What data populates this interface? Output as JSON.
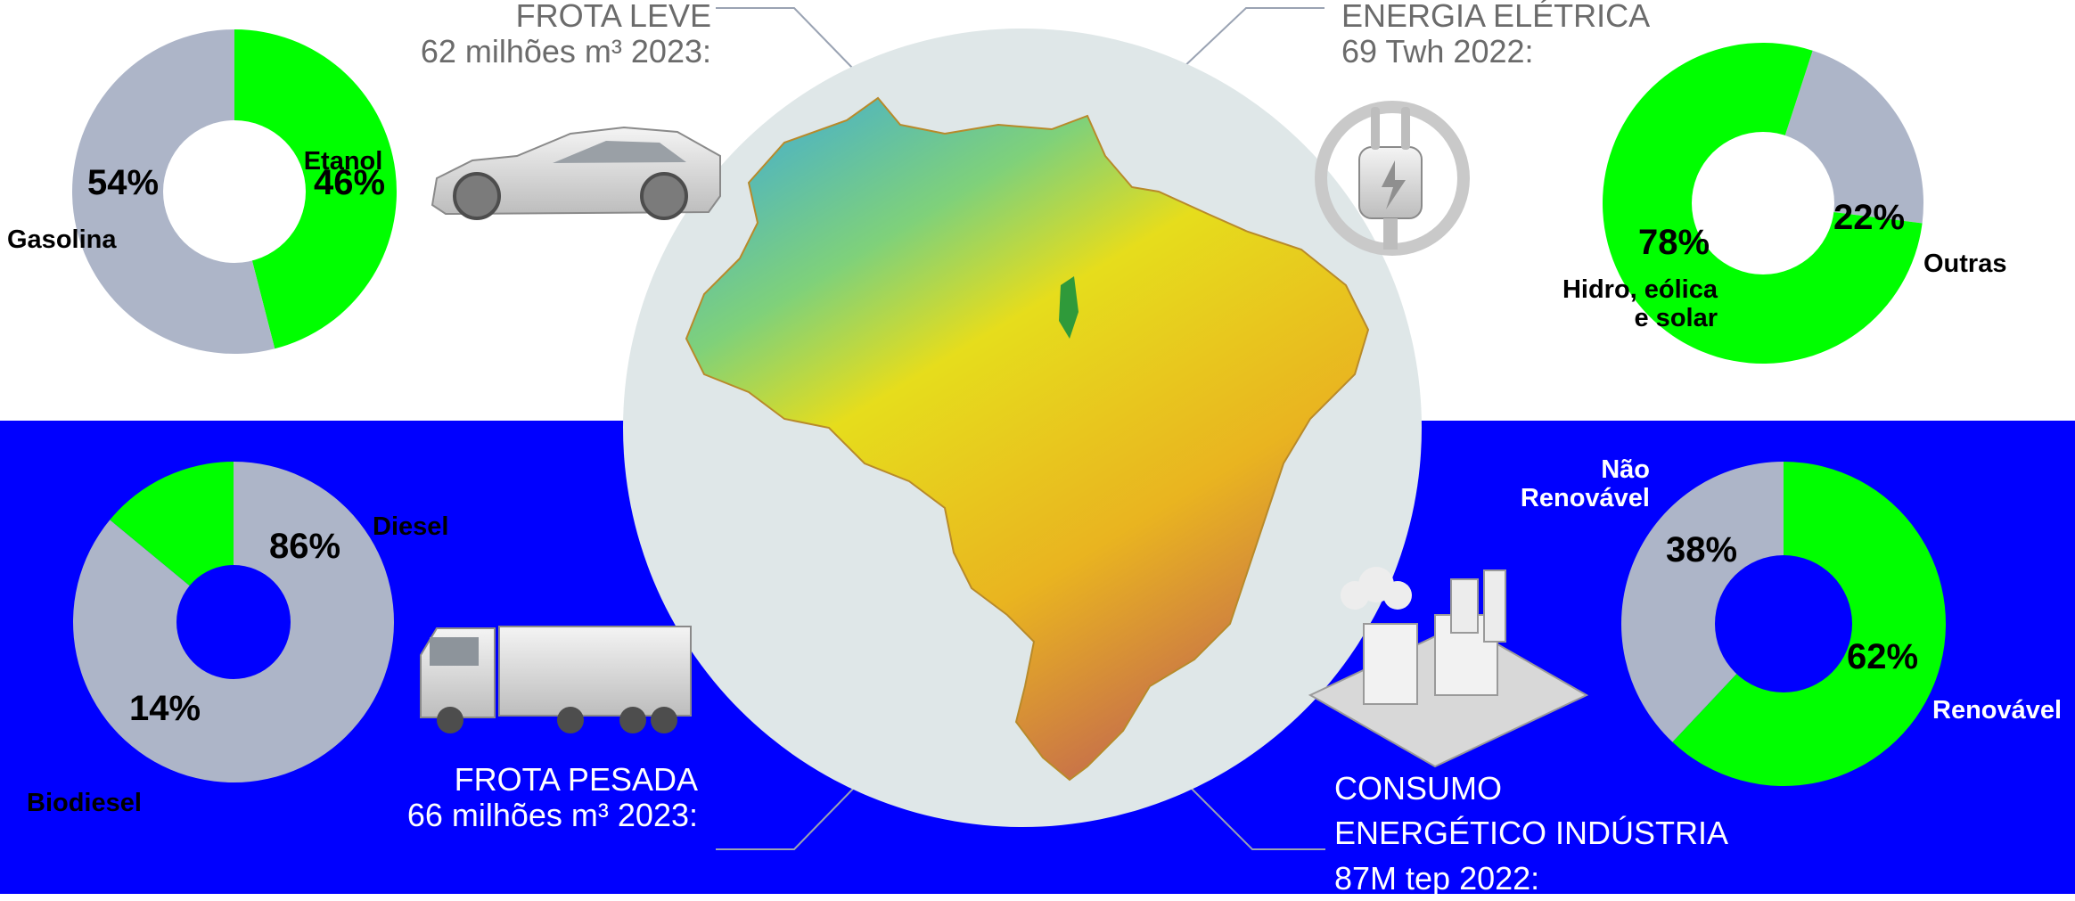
{
  "colors": {
    "renewable": "#00ff00",
    "fossil": "#adb5c8",
    "band": "#0000ff",
    "text_gray": "#6b6b6b"
  },
  "sections": {
    "frota_leve": {
      "title": "FROTA LEVE",
      "subtitle": "62 milhões m³ 2023:",
      "icon": "car-icon"
    },
    "energia_eletrica": {
      "title": "ENERGIA ELÉTRICA",
      "subtitle": "69 Twh 2022:",
      "icon": "plug-icon"
    },
    "frota_pesada": {
      "title": "FROTA PESADA",
      "subtitle": "66 milhões m³ 2023:",
      "icon": "truck-icon"
    },
    "consumo_industria": {
      "title_line1": "CONSUMO",
      "title_line2": "ENERGÉTICO INDÚSTRIA",
      "subtitle": "87M tep 2022:",
      "icon": "factory-icon"
    }
  },
  "center_image": {
    "icon": "brazil-map-icon"
  },
  "chart_data": [
    {
      "type": "pie",
      "id": "frota-leve",
      "slices": [
        {
          "label": "Etanol",
          "value": 46,
          "display": "46%",
          "color": "#00ff00"
        },
        {
          "label": "Gasolina",
          "value": 54,
          "display": "54%",
          "color": "#adb5c8"
        }
      ]
    },
    {
      "type": "pie",
      "id": "energia-eletrica",
      "slices": [
        {
          "label": "Outras",
          "value": 22,
          "display": "22%",
          "color": "#adb5c8"
        },
        {
          "label": "Hidro, eólica e solar",
          "label_lines": [
            "Hidro, eólica",
            "e solar"
          ],
          "value": 78,
          "display": "78%",
          "color": "#00ff00"
        }
      ]
    },
    {
      "type": "pie",
      "id": "frota-pesada",
      "slices": [
        {
          "label": "Diesel",
          "value": 86,
          "display": "86%",
          "color": "#adb5c8"
        },
        {
          "label": "Biodiesel",
          "value": 14,
          "display": "14%",
          "color": "#00ff00"
        }
      ]
    },
    {
      "type": "pie",
      "id": "consumo-industria",
      "slices": [
        {
          "label": "Renovável",
          "value": 62,
          "display": "62%",
          "color": "#00ff00"
        },
        {
          "label": "Não Renovável",
          "label_lines": [
            "Não",
            "Renovável"
          ],
          "value": 38,
          "display": "38%",
          "color": "#adb5c8"
        }
      ]
    }
  ]
}
